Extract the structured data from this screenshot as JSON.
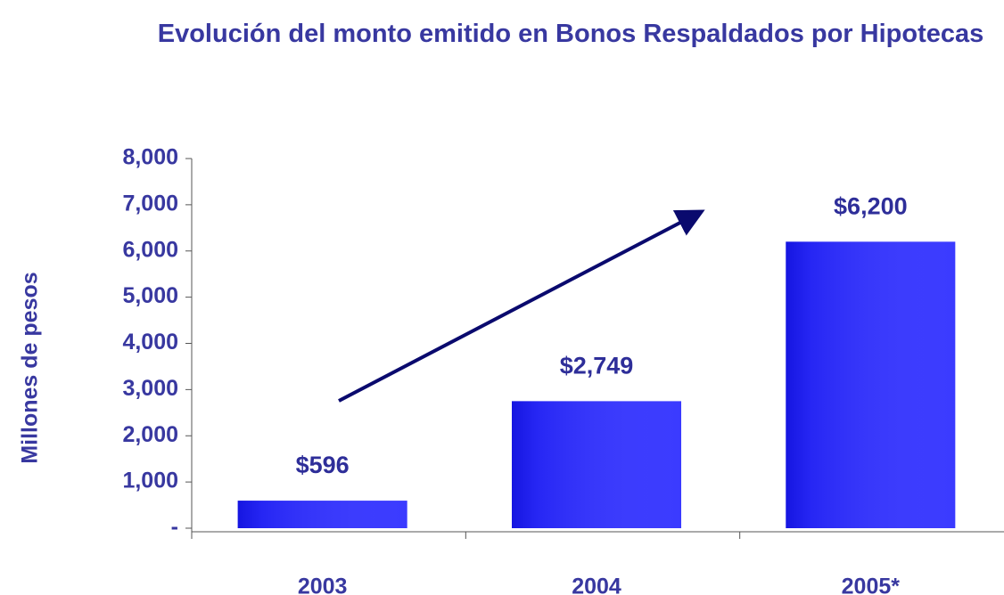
{
  "chart_data": {
    "type": "bar",
    "title": "Evolución del monto emitido en Bonos Respaldados por Hipotecas",
    "y_label": "Millones de pesos",
    "categories": [
      "2003",
      "2004",
      "2005*"
    ],
    "values": [
      596,
      2749,
      6200
    ],
    "value_labels": [
      "$596",
      "$2,749",
      "$6,200"
    ],
    "color": "#3030ff",
    "ylim": [
      0,
      8000
    ],
    "yticks": [
      {
        "value": 0,
        "label": "-"
      },
      {
        "value": 1000,
        "label": "1,000"
      },
      {
        "value": 2000,
        "label": "2,000"
      },
      {
        "value": 3000,
        "label": "3,000"
      },
      {
        "value": 4000,
        "label": "4,000"
      },
      {
        "value": 5000,
        "label": "5,000"
      },
      {
        "value": 6000,
        "label": "6,000"
      },
      {
        "value": 7000,
        "label": "7,000"
      },
      {
        "value": 8000,
        "label": "8,000"
      }
    ],
    "grid": false
  }
}
